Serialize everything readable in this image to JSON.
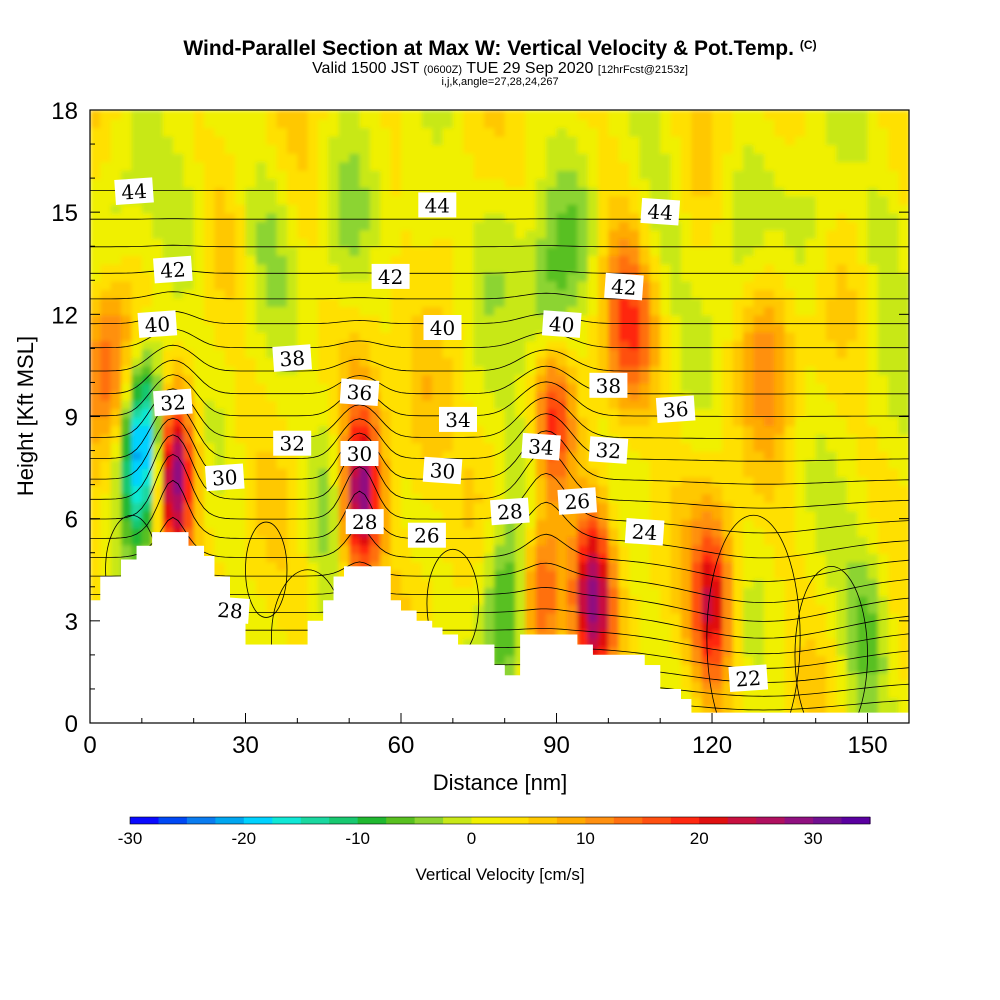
{
  "title": "Wind-Parallel Section at Max W: Vertical Velocity & Pot.Temp.",
  "copyright": "(C)",
  "valid_a": "Valid 1500 JST",
  "valid_utc": "(0600Z)",
  "valid_b": "TUE 29 Sep 2020",
  "valid_fcst": "[12hrFcst@2153z]",
  "indices": "i,j,k,angle=27,28,24,267",
  "colorbar_label": "Vertical Velocity [cm/s]",
  "colorbar_ticks": [
    "-30",
    "-20",
    "-10",
    "0",
    "10",
    "20",
    "30"
  ],
  "colorbar_colors": [
    "#0a0aff",
    "#0048f5",
    "#0a7cf0",
    "#00a6f0",
    "#00d2ff",
    "#10e8d6",
    "#1ad8a0",
    "#18c870",
    "#20b830",
    "#58c020",
    "#8cd430",
    "#c8e818",
    "#f0f000",
    "#ffe000",
    "#ffc800",
    "#ffaa00",
    "#ff9010",
    "#ff7010",
    "#ff5010",
    "#ff2810",
    "#e01010",
    "#c81040",
    "#b01060",
    "#901080",
    "#701090",
    "#5a00a0"
  ],
  "chart_data": {
    "type": "heatmap",
    "title": "Wind-Parallel Section at Max W: Vertical Velocity & Pot.Temp.",
    "xlabel": "Distance [nm]",
    "ylabel": "Height [Kft MSL]",
    "xlim": [
      0,
      158
    ],
    "ylim": [
      0,
      18
    ],
    "x_ticks": [
      "0",
      "30",
      "60",
      "90",
      "120",
      "150"
    ],
    "y_ticks": [
      "0",
      "3",
      "6",
      "9",
      "12",
      "15",
      "18"
    ],
    "colorbar": {
      "label": "Vertical Velocity [cm/s]",
      "range": [
        -30,
        35
      ]
    },
    "vertical_velocity_peaks": [
      {
        "x": 16,
        "y": 7.5,
        "w": 35
      },
      {
        "x": 52,
        "y": 6.7,
        "w": 30
      },
      {
        "x": 89,
        "y": 8.5,
        "w": 20
      },
      {
        "x": 87,
        "y": 4.0,
        "w": 20
      },
      {
        "x": 97,
        "y": 3.8,
        "w": 25
      },
      {
        "x": 120,
        "y": 3.5,
        "w": 20
      },
      {
        "x": 104,
        "y": 11.5,
        "w": 14
      },
      {
        "x": 3,
        "y": 10.5,
        "w": 13
      },
      {
        "x": 10,
        "y": 8.0,
        "w": -20
      },
      {
        "x": 13,
        "y": 8.6,
        "w": -14
      },
      {
        "x": 48,
        "y": 7.0,
        "w": -8
      },
      {
        "x": 80,
        "y": 3.3,
        "w": -12
      },
      {
        "x": 88,
        "y": 12.0,
        "w": -9
      },
      {
        "x": 87,
        "y": 7.0,
        "w": -12
      },
      {
        "x": 150,
        "y": 3.0,
        "w": -9
      },
      {
        "x": 64,
        "y": 9.0,
        "w": 7
      },
      {
        "x": 131,
        "y": 11.0,
        "w": 8
      }
    ],
    "theta_contour_labels": [
      {
        "text": "44",
        "x": 8.5,
        "y": 15.6
      },
      {
        "text": "44",
        "x": 67,
        "y": 15.2
      },
      {
        "text": "44",
        "x": 110,
        "y": 15.0
      },
      {
        "text": "42",
        "x": 16,
        "y": 13.3
      },
      {
        "text": "42",
        "x": 58,
        "y": 13.1
      },
      {
        "text": "42",
        "x": 103,
        "y": 12.8
      },
      {
        "text": "40",
        "x": 13,
        "y": 11.7
      },
      {
        "text": "40",
        "x": 68,
        "y": 11.6
      },
      {
        "text": "40",
        "x": 91,
        "y": 11.7
      },
      {
        "text": "38",
        "x": 39,
        "y": 10.7
      },
      {
        "text": "38",
        "x": 100,
        "y": 9.9
      },
      {
        "text": "36",
        "x": 52,
        "y": 9.7
      },
      {
        "text": "36",
        "x": 113,
        "y": 9.2
      },
      {
        "text": "34",
        "x": 71,
        "y": 8.9
      },
      {
        "text": "34",
        "x": 87,
        "y": 8.1
      },
      {
        "text": "32",
        "x": 16,
        "y": 9.4
      },
      {
        "text": "32",
        "x": 39,
        "y": 8.2
      },
      {
        "text": "32",
        "x": 100,
        "y": 8.0
      },
      {
        "text": "30",
        "x": 26,
        "y": 7.2
      },
      {
        "text": "30",
        "x": 52,
        "y": 7.9
      },
      {
        "text": "30",
        "x": 68,
        "y": 7.4
      },
      {
        "text": "28",
        "x": 81,
        "y": 6.2
      },
      {
        "text": "28",
        "x": 53,
        "y": 5.9
      },
      {
        "text": "28",
        "x": 27,
        "y": 3.3
      },
      {
        "text": "26",
        "x": 94,
        "y": 6.5
      },
      {
        "text": "26",
        "x": 65,
        "y": 5.5
      },
      {
        "text": "24",
        "x": 107,
        "y": 5.6
      },
      {
        "text": "22",
        "x": 127,
        "y": 1.3
      }
    ],
    "terrain": [
      [
        0,
        3.6
      ],
      [
        2,
        3.6
      ],
      [
        2,
        4.3
      ],
      [
        6,
        4.3
      ],
      [
        6,
        4.8
      ],
      [
        9,
        4.8
      ],
      [
        9,
        5.2
      ],
      [
        12,
        5.2
      ],
      [
        12,
        5.6
      ],
      [
        19,
        5.6
      ],
      [
        19,
        5.2
      ],
      [
        22,
        5.2
      ],
      [
        22,
        4.9
      ],
      [
        24,
        4.9
      ],
      [
        24,
        4.3
      ],
      [
        27,
        4.3
      ],
      [
        27,
        3.6
      ],
      [
        30,
        3.6
      ],
      [
        30,
        2.3
      ],
      [
        42,
        2.3
      ],
      [
        42,
        3.0
      ],
      [
        45,
        3.0
      ],
      [
        45,
        3.6
      ],
      [
        47,
        3.6
      ],
      [
        47,
        4.3
      ],
      [
        49,
        4.3
      ],
      [
        49,
        4.6
      ],
      [
        58,
        4.6
      ],
      [
        58,
        3.6
      ],
      [
        60,
        3.6
      ],
      [
        60,
        3.3
      ],
      [
        63,
        3.3
      ],
      [
        63,
        3.0
      ],
      [
        66,
        3.0
      ],
      [
        66,
        2.8
      ],
      [
        68,
        2.8
      ],
      [
        68,
        2.6
      ],
      [
        71,
        2.6
      ],
      [
        71,
        2.3
      ],
      [
        78,
        2.3
      ],
      [
        78,
        1.7
      ],
      [
        80,
        1.7
      ],
      [
        80,
        1.4
      ],
      [
        83,
        1.4
      ],
      [
        83,
        2.6
      ],
      [
        94,
        2.6
      ],
      [
        94,
        2.3
      ],
      [
        97,
        2.3
      ],
      [
        97,
        2.0
      ],
      [
        107,
        2.0
      ],
      [
        107,
        1.7
      ],
      [
        110,
        1.7
      ],
      [
        110,
        1.0
      ],
      [
        114,
        1.0
      ],
      [
        114,
        0.7
      ],
      [
        116,
        0.7
      ],
      [
        116,
        0.3
      ],
      [
        158,
        0.3
      ]
    ]
  }
}
